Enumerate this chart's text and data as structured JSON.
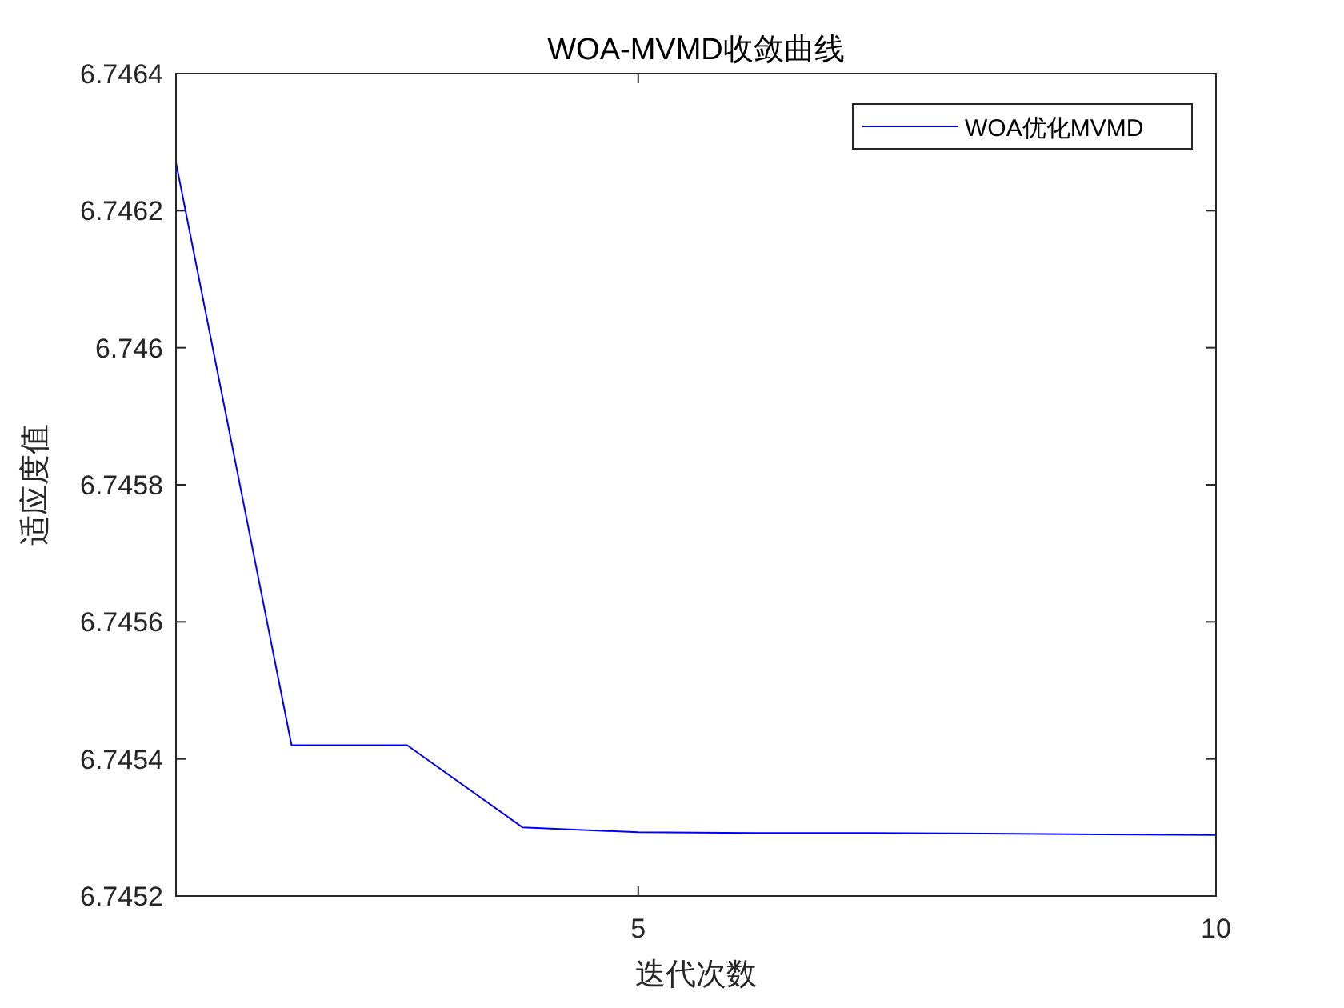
{
  "chart_data": {
    "type": "line",
    "title": "WOA-MVMD收敛曲线",
    "xlabel": "迭代次数",
    "ylabel": "适应度值",
    "x": [
      1,
      2,
      3,
      4,
      5,
      6,
      7,
      8,
      9,
      10
    ],
    "series": [
      {
        "name": "WOA优化MVMD",
        "color": "#0000ff",
        "values": [
          6.74627,
          6.74542,
          6.74542,
          6.7453,
          6.745293,
          6.745292,
          6.745292,
          6.745291,
          6.74529,
          6.745289
        ]
      }
    ],
    "xlim": [
      1,
      10
    ],
    "xticks": [
      5,
      10
    ],
    "ylim": [
      6.7452,
      6.7464
    ],
    "yticks": [
      6.7452,
      6.7454,
      6.7456,
      6.7458,
      6.746,
      6.7462,
      6.7464
    ],
    "legend": "top right",
    "grid": false,
    "marker": "none",
    "line_style": "solid"
  }
}
